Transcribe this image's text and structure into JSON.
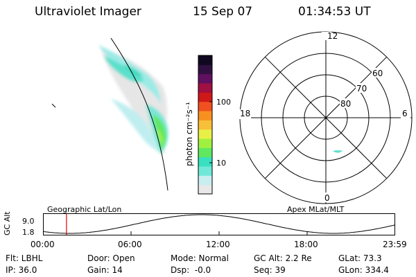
{
  "header": {
    "title": "Ultraviolet Imager",
    "date": "15 Sep 07",
    "time": "01:34:53 UT"
  },
  "colorbar": {
    "unit_label": "photon cm⁻²s⁻¹",
    "tick_100": "100",
    "tick_10": "10",
    "colors": [
      "#e8e8e8",
      "#c8eef0",
      "#70e8d8",
      "#38e0c0",
      "#60e860",
      "#a0f040",
      "#e8f048",
      "#f8c038",
      "#f89020",
      "#f05020",
      "#d01818",
      "#a01040",
      "#601060",
      "#301040",
      "#100820"
    ]
  },
  "polar": {
    "labels": {
      "top": "12",
      "left": "18",
      "right": "6",
      "bottom": "0"
    },
    "lat_labels": [
      "60",
      "70",
      "80"
    ]
  },
  "timeline": {
    "ylabel": "GC Alt",
    "yticks": [
      "9.0",
      "1.8"
    ],
    "left_label": "Geographic Lat/Lon",
    "right_label": "Apex MLat/MLT",
    "xticks": [
      "00:00",
      "06:00",
      "12:00",
      "18:00",
      "23:59"
    ],
    "current_time_hours": 1.58
  },
  "info": {
    "row1": [
      "Flt: LBHL",
      "Door: Open",
      "Mode: Normal",
      "GC Alt: 2.2 Re",
      "GLat: 73.3"
    ],
    "row2": [
      "IP: 36.0",
      "Gain: 14",
      "Dsp:  -0.0",
      "Seq: 39",
      "GLon: 334.4"
    ]
  }
}
